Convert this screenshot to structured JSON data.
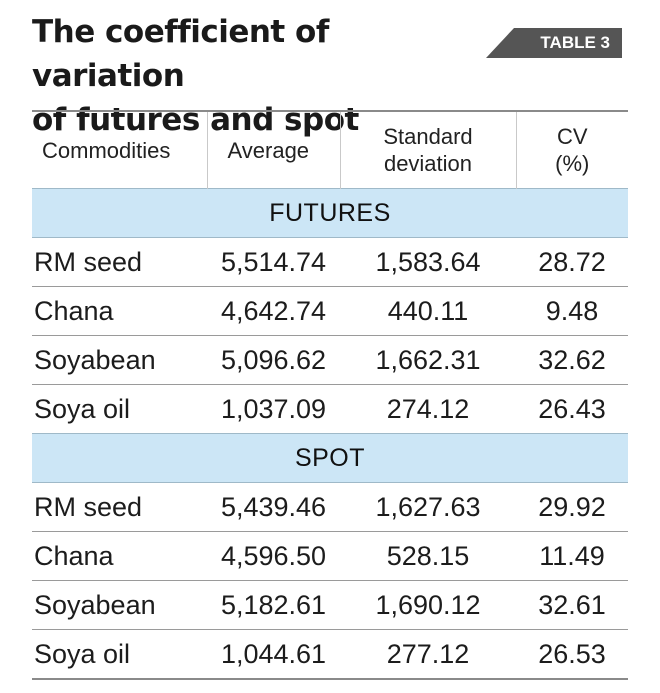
{
  "header": {
    "title_line1": "The coefficient of variation",
    "title_line2": "of futures and spot",
    "tag": "TABLE 3"
  },
  "chart_data": {
    "type": "table",
    "columns": [
      "Commodities",
      "Average",
      "Standard deviation",
      "CV (%)"
    ],
    "column_lines": {
      "std_line1": "Standard",
      "std_line2": "deviation",
      "cv_line1": "CV",
      "cv_line2": "(%)"
    },
    "sections": [
      {
        "name": "FUTURES",
        "rows": [
          {
            "commodity": "RM seed",
            "average": "5,514.74",
            "std": "1,583.64",
            "cv": "28.72"
          },
          {
            "commodity": "Chana",
            "average": "4,642.74",
            "std": "440.11",
            "cv": "9.48"
          },
          {
            "commodity": "Soyabean",
            "average": "5,096.62",
            "std": "1,662.31",
            "cv": "32.62"
          },
          {
            "commodity": "Soya oil",
            "average": "1,037.09",
            "std": "274.12",
            "cv": "26.43"
          }
        ]
      },
      {
        "name": "SPOT",
        "rows": [
          {
            "commodity": "RM seed",
            "average": "5,439.46",
            "std": "1,627.63",
            "cv": "29.92"
          },
          {
            "commodity": "Chana",
            "average": "4,596.50",
            "std": "528.15",
            "cv": "11.49"
          },
          {
            "commodity": "Soyabean",
            "average": "5,182.61",
            "std": "1,690.12",
            "cv": "32.61"
          },
          {
            "commodity": "Soya oil",
            "average": "1,044.61",
            "std": "277.12",
            "cv": "26.53"
          }
        ]
      }
    ]
  },
  "colors": {
    "section_band": "#cce6f6",
    "tag_background": "#555555"
  }
}
